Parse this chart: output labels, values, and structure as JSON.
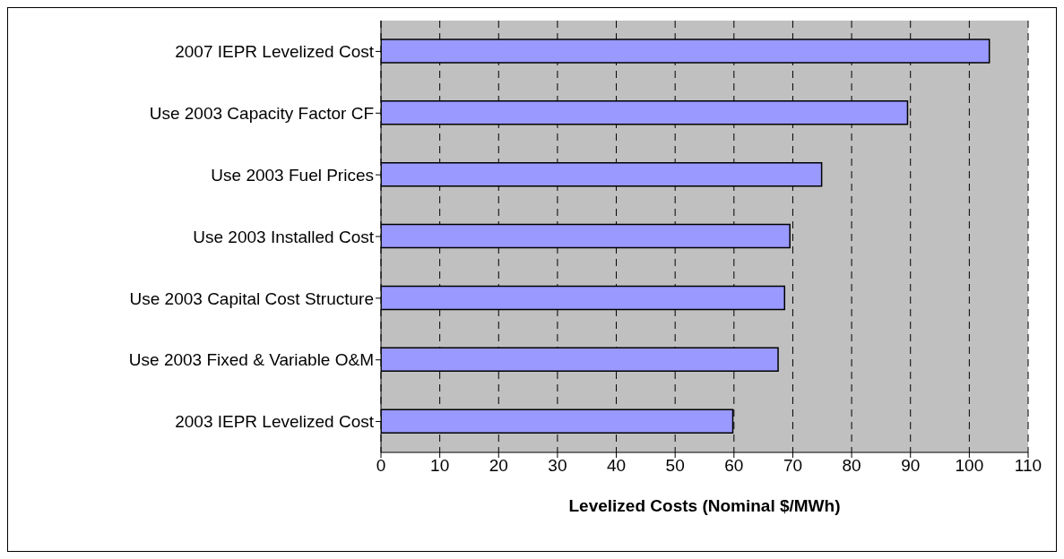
{
  "chart_data": {
    "type": "bar",
    "orientation": "horizontal",
    "categories": [
      "2007 IEPR Levelized Cost",
      "Use 2003 Capacity Factor CF",
      "Use 2003 Fuel Prices",
      "Use 2003 Installed Cost",
      "Use 2003 Capital Cost Structure",
      "Use 2003 Fixed & Variable O&M",
      "2003 IEPR Levelized Cost"
    ],
    "values": [
      103.4,
      89.5,
      74.9,
      69.5,
      68.6,
      67.5,
      59.8
    ],
    "color": "#9999ff",
    "xlabel": "Levelized Costs (Nominal $/MWh)",
    "xlim": [
      0,
      110
    ],
    "xticks": [
      0,
      10,
      20,
      30,
      40,
      50,
      60,
      70,
      80,
      90,
      100,
      110
    ],
    "grid": "x"
  }
}
